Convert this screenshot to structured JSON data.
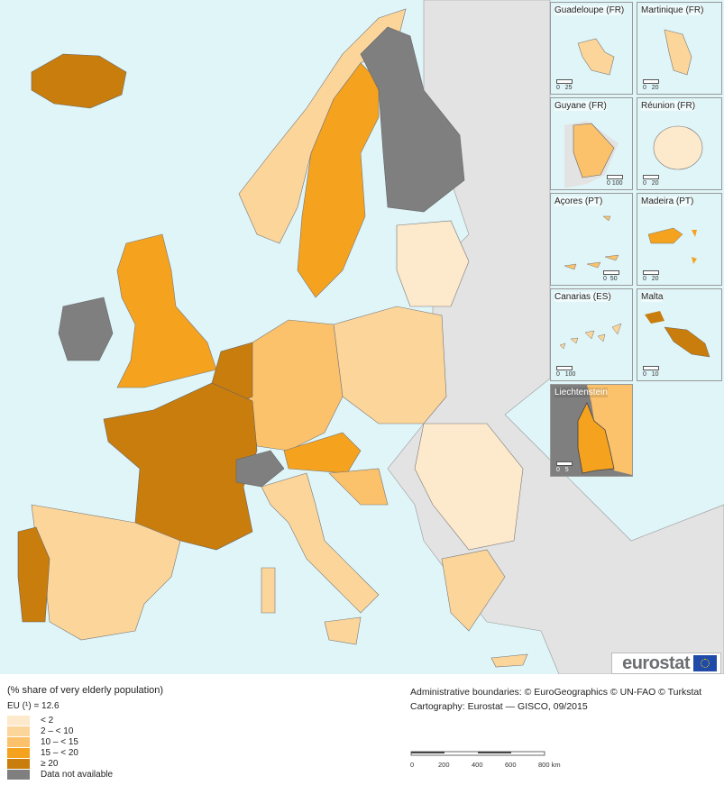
{
  "legend": {
    "title": "(% share of very elderly population)",
    "eu_value": "EU (¹) = 12.6",
    "classes": [
      {
        "label": "< 2",
        "color": "#fde9cc"
      },
      {
        "label": "2 – < 10",
        "color": "#fcd59a"
      },
      {
        "label": "10 – < 15",
        "color": "#fbc26b"
      },
      {
        "label": "15 – < 20",
        "color": "#f5a21f"
      },
      {
        "label": "≥ 20",
        "color": "#c97d0c"
      },
      {
        "label": "Data not available",
        "color": "#7f7f7f"
      }
    ]
  },
  "insets": [
    {
      "name": "Guadeloupe (FR)",
      "scale": [
        "0",
        "25"
      ]
    },
    {
      "name": "Martinique (FR)",
      "scale": [
        "0",
        "20"
      ]
    },
    {
      "name": "Guyane (FR)",
      "scale": [
        "0",
        "100"
      ]
    },
    {
      "name": "Réunion (FR)",
      "scale": [
        "0",
        "20"
      ]
    },
    {
      "name": "Açores (PT)",
      "scale": [
        "0",
        "50"
      ]
    },
    {
      "name": "Madeira (PT)",
      "scale": [
        "0",
        "20"
      ]
    },
    {
      "name": "Canarias (ES)",
      "scale": [
        "0",
        "100"
      ]
    },
    {
      "name": "Malta",
      "scale": [
        "0",
        "10"
      ]
    },
    {
      "name": "Liechtenstein",
      "scale": [
        "0",
        "5"
      ]
    }
  ],
  "credits": {
    "boundaries": "Administrative boundaries: © EuroGeographics © UN-FAO © Turkstat",
    "cartography": "Cartography: Eurostat — GISCO, 09/2015"
  },
  "scale_bar": {
    "ticks": [
      "0",
      "200",
      "400",
      "600",
      "800 km"
    ]
  },
  "logo": "eurostat"
}
